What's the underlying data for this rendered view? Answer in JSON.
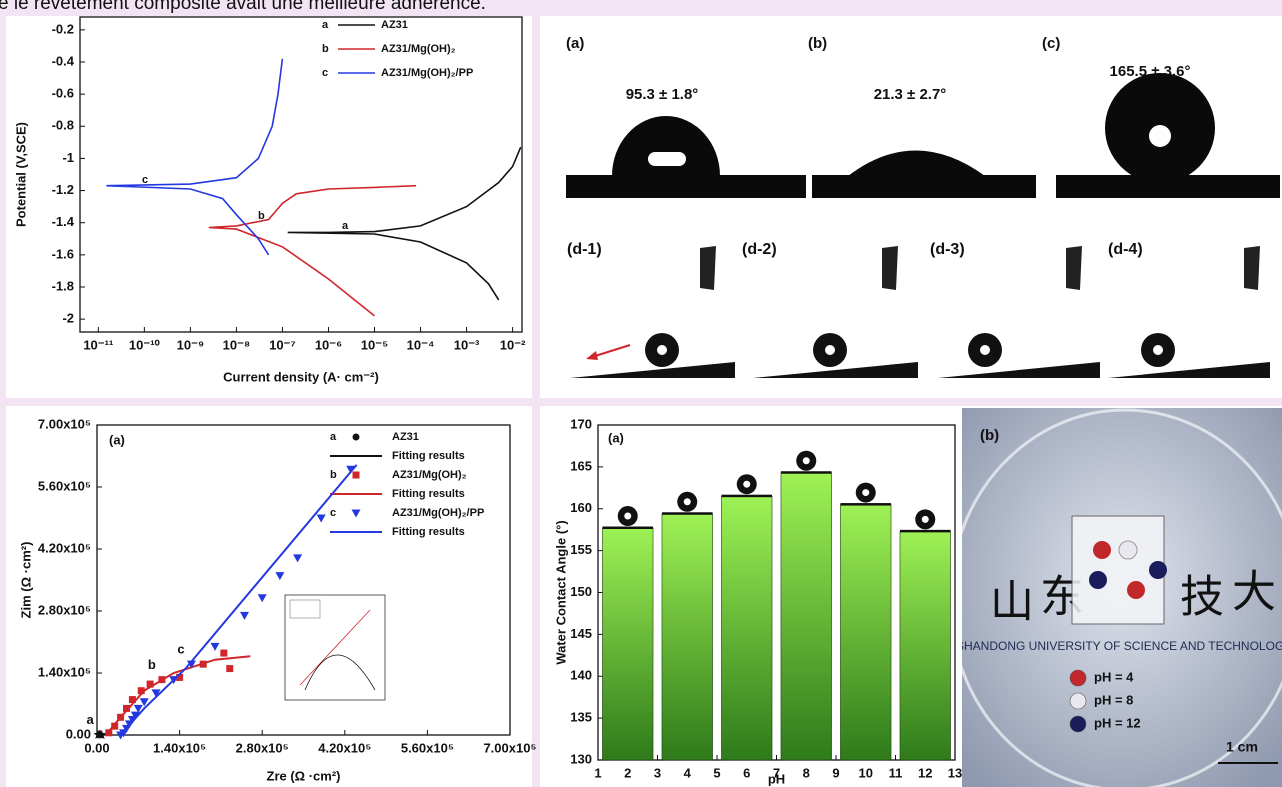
{
  "header_text": "e le revêtement composite avait une meilleure adhérence.",
  "chart_data": [
    {
      "type": "line",
      "xlabel": "Current density (A· cm⁻²)",
      "ylabel": "Potential (V,SCE)",
      "xlog": true,
      "xlim": [
        4e-12,
        0.016
      ],
      "ylim": [
        -2.08,
        -0.12
      ],
      "xticks": [
        {
          "value": 1e-11,
          "label": "10⁻¹¹"
        },
        {
          "value": 1e-10,
          "label": "10⁻¹⁰"
        },
        {
          "value": 1e-09,
          "label": "10⁻⁹"
        },
        {
          "value": 1e-08,
          "label": "10⁻⁸"
        },
        {
          "value": 1e-07,
          "label": "10⁻⁷"
        },
        {
          "value": 1e-06,
          "label": "10⁻⁶"
        },
        {
          "value": 1e-05,
          "label": "10⁻⁵"
        },
        {
          "value": 0.0001,
          "label": "10⁻⁴"
        },
        {
          "value": 0.001,
          "label": "10⁻³"
        },
        {
          "value": 0.01,
          "label": "10⁻²"
        }
      ],
      "yticks": [
        -0.2,
        -0.4,
        -0.6,
        -0.8,
        -1.0,
        -1.2,
        -1.4,
        -1.6,
        -1.8,
        -2.0
      ],
      "series": [
        {
          "name": "AZ31",
          "letter": "a",
          "color": "#111111",
          "x": [
            0.005,
            0.003,
            0.001,
            0.0001,
            1e-05,
            1.3e-07,
            1e-06,
            1e-05,
            0.0001,
            0.001,
            0.005,
            0.01,
            0.015
          ],
          "values": [
            -1.88,
            -1.78,
            -1.65,
            -1.52,
            -1.47,
            -1.46,
            -1.46,
            -1.455,
            -1.42,
            -1.3,
            -1.15,
            -1.05,
            -0.93
          ]
        },
        {
          "name": "AZ31/Mg(OH)₂",
          "letter": "b",
          "color": "#d0262b",
          "x": [
            1e-05,
            1e-06,
            1e-07,
            1e-08,
            2.5e-09,
            1e-08,
            5e-08,
            1e-07,
            2e-07,
            1e-06,
            1e-05,
            8e-05
          ],
          "values": [
            -1.98,
            -1.75,
            -1.55,
            -1.44,
            -1.43,
            -1.42,
            -1.38,
            -1.28,
            -1.22,
            -1.19,
            -1.18,
            -1.17
          ]
        },
        {
          "name": "AZ31/Mg(OH)₂/PP",
          "letter": "c",
          "color": "#2438e0",
          "x": [
            5e-08,
            3e-08,
            1e-08,
            5e-09,
            1e-09,
            1.5e-11,
            1e-09,
            1e-08,
            3e-08,
            6e-08,
            8e-08,
            1e-07
          ],
          "values": [
            -1.6,
            -1.5,
            -1.35,
            -1.25,
            -1.19,
            -1.17,
            -1.16,
            -1.12,
            -1.0,
            -0.8,
            -0.6,
            -0.38
          ]
        }
      ]
    },
    {
      "type": "scatter",
      "panel_label": "(a)",
      "xlabel": "Zre (Ω ·cm²)",
      "ylabel": "Zim (Ω ·cm²)",
      "xlim": [
        0,
        700000
      ],
      "ylim": [
        0,
        700000
      ],
      "xticks": [
        {
          "value": 0,
          "label": "0.00"
        },
        {
          "value": 140000,
          "label": "1.40x10⁵"
        },
        {
          "value": 280000,
          "label": "2.80x10⁵"
        },
        {
          "value": 420000,
          "label": "4.20x10⁵"
        },
        {
          "value": 560000,
          "label": "5.60x10⁵"
        },
        {
          "value": 700000,
          "label": "7.00x10⁵"
        }
      ],
      "yticks": [
        {
          "value": 0,
          "label": "0.00"
        },
        {
          "value": 140000,
          "label": "1.40x10⁵"
        },
        {
          "value": 280000,
          "label": "2.80x10⁵"
        },
        {
          "value": 420000,
          "label": "4.20x10⁵"
        },
        {
          "value": 560000,
          "label": "5.60x10⁵"
        },
        {
          "value": 700000,
          "label": "7.00x10⁵"
        }
      ],
      "series": [
        {
          "name": "AZ31",
          "letter": "a",
          "marker": "star",
          "color": "#111111",
          "x": [
            2000,
            4000,
            6000,
            8000
          ],
          "values": [
            500,
            1000,
            800,
            300
          ]
        },
        {
          "name": "Fitting results",
          "marker": "line",
          "color": "#111111",
          "x": [
            1000,
            4000,
            8000
          ],
          "values": [
            0,
            1000,
            200
          ]
        },
        {
          "name": "AZ31/Mg(OH)₂",
          "letter": "b",
          "marker": "square",
          "color": "#d0262b",
          "x": [
            20000,
            30000,
            40000,
            50000,
            60000,
            75000,
            90000,
            110000,
            140000,
            180000,
            215000,
            225000
          ],
          "values": [
            5000,
            20000,
            40000,
            60000,
            80000,
            100000,
            115000,
            125000,
            130000,
            160000,
            185000,
            150000
          ]
        },
        {
          "name": "Fitting results",
          "marker": "line",
          "color": "#d0262b",
          "x": [
            15000,
            40000,
            80000,
            130000,
            200000,
            260000
          ],
          "values": [
            0,
            40000,
            100000,
            140000,
            170000,
            178000
          ]
        },
        {
          "name": "AZ31/Mg(OH)₂/PP",
          "letter": "c",
          "marker": "triangle",
          "color": "#2438e0",
          "x": [
            40000,
            45000,
            50000,
            55000,
            60000,
            65000,
            70000,
            80000,
            100000,
            130000,
            160000,
            200000,
            250000,
            280000,
            310000,
            340000,
            380000,
            430000
          ],
          "values": [
            0,
            5000,
            15000,
            25000,
            35000,
            45000,
            60000,
            75000,
            95000,
            125000,
            160000,
            200000,
            270000,
            310000,
            360000,
            400000,
            490000,
            600000
          ]
        },
        {
          "name": "Fitting results",
          "marker": "line",
          "color": "#2438e0",
          "x": [
            40000,
            80000,
            150000,
            440000
          ],
          "values": [
            0,
            60000,
            150000,
            610000
          ]
        }
      ]
    },
    {
      "type": "bar",
      "panel_label": "(a)",
      "xlabel": "pH",
      "ylabel": "Water Contact Angle (°)",
      "x": [
        2,
        4,
        6,
        8,
        10,
        12
      ],
      "values": [
        157.7,
        159.4,
        161.5,
        164.3,
        160.5,
        157.3
      ],
      "color": "#6fd230",
      "xlim": [
        1,
        13
      ],
      "ylim": [
        130,
        170
      ],
      "xticks": [
        1,
        2,
        3,
        4,
        5,
        6,
        7,
        8,
        9,
        10,
        11,
        12,
        13
      ],
      "yticks": [
        130,
        135,
        140,
        145,
        150,
        155,
        160,
        165,
        170
      ]
    }
  ],
  "contact_angle": {
    "panels": [
      {
        "label": "(a)",
        "angle": "95.3 ± 1.8°"
      },
      {
        "label": "(b)",
        "angle": "21.3 ± 2.7°"
      },
      {
        "label": "(c)",
        "angle": "165.5 ± 3.6°"
      }
    ],
    "slide_labels": [
      "(d-1)",
      "(d-2)",
      "(d-3)",
      "(d-4)"
    ]
  },
  "photo": {
    "label": "(b)",
    "characters": [
      "山",
      "东",
      "技",
      "大"
    ],
    "university": "SHANDONG UNIVERSITY OF SCIENCE AND TECHNOLOGY",
    "legend": [
      {
        "text": "pH = 4",
        "color": "#c0282b"
      },
      {
        "text": "pH = 8",
        "color": "#e8e8ee"
      },
      {
        "text": "pH = 12",
        "color": "#1a1d5a"
      }
    ],
    "scale_bar": "1 cm"
  }
}
